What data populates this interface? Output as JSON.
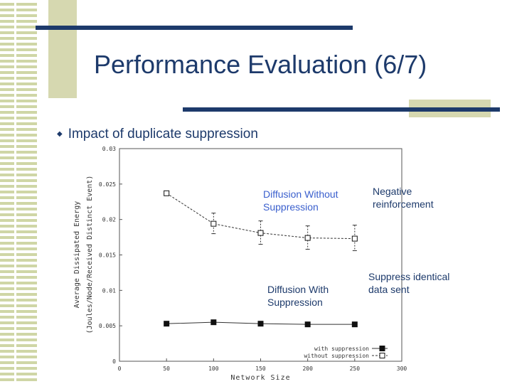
{
  "slide": {
    "title": "Performance Evaluation (6/7)",
    "bullet": "Impact of duplicate suppression",
    "colors": {
      "title": "#1d3a6b",
      "bar": "#1d3a6b",
      "accent_box": "#d6d8b0",
      "stripe": "#cfd6a6",
      "annotation_blue": "#3a5fcd",
      "annotation_dark": "#1d3a6b"
    }
  },
  "annotations": {
    "diffusion_without": [
      "Diffusion Without",
      "Suppression"
    ],
    "diffusion_with": [
      "Diffusion With",
      "Suppression"
    ],
    "negative_reinforcement": [
      "Negative",
      "reinforcement"
    ],
    "suppress_identical": [
      "Suppress identical",
      "data sent"
    ]
  },
  "chart_data": {
    "type": "line",
    "xlabel": "Network Size",
    "ylabel_lines": [
      "Average Dissipated Energy",
      "(Joules/Node/Received Distinct Event)"
    ],
    "xlim": [
      0,
      300
    ],
    "ylim": [
      0,
      0.03
    ],
    "x_ticks": [
      "0",
      "50",
      "100",
      "150",
      "200",
      "250",
      "300"
    ],
    "y_ticks": [
      "0",
      "0.005",
      "0.01",
      "0.015",
      "0.02",
      "0.025",
      "0.03"
    ],
    "legend_position": "bottom-right",
    "series": [
      {
        "name": "with suppression",
        "marker": "filled-square",
        "x": [
          50,
          100,
          150,
          200,
          250
        ],
        "y": [
          0.0053,
          0.0055,
          0.0053,
          0.0052,
          0.0052
        ],
        "err_low": [
          0,
          0,
          0,
          0,
          0
        ],
        "err_high": [
          0,
          0,
          0,
          0,
          0
        ]
      },
      {
        "name": "without suppression",
        "marker": "open-square",
        "x": [
          50,
          100,
          150,
          200,
          250
        ],
        "y": [
          0.0237,
          0.0194,
          0.0181,
          0.0174,
          0.0173
        ],
        "err_low": [
          0.0237,
          0.018,
          0.0165,
          0.0158,
          0.0156
        ],
        "err_high": [
          0.0237,
          0.0209,
          0.0198,
          0.0191,
          0.0192
        ]
      }
    ]
  }
}
